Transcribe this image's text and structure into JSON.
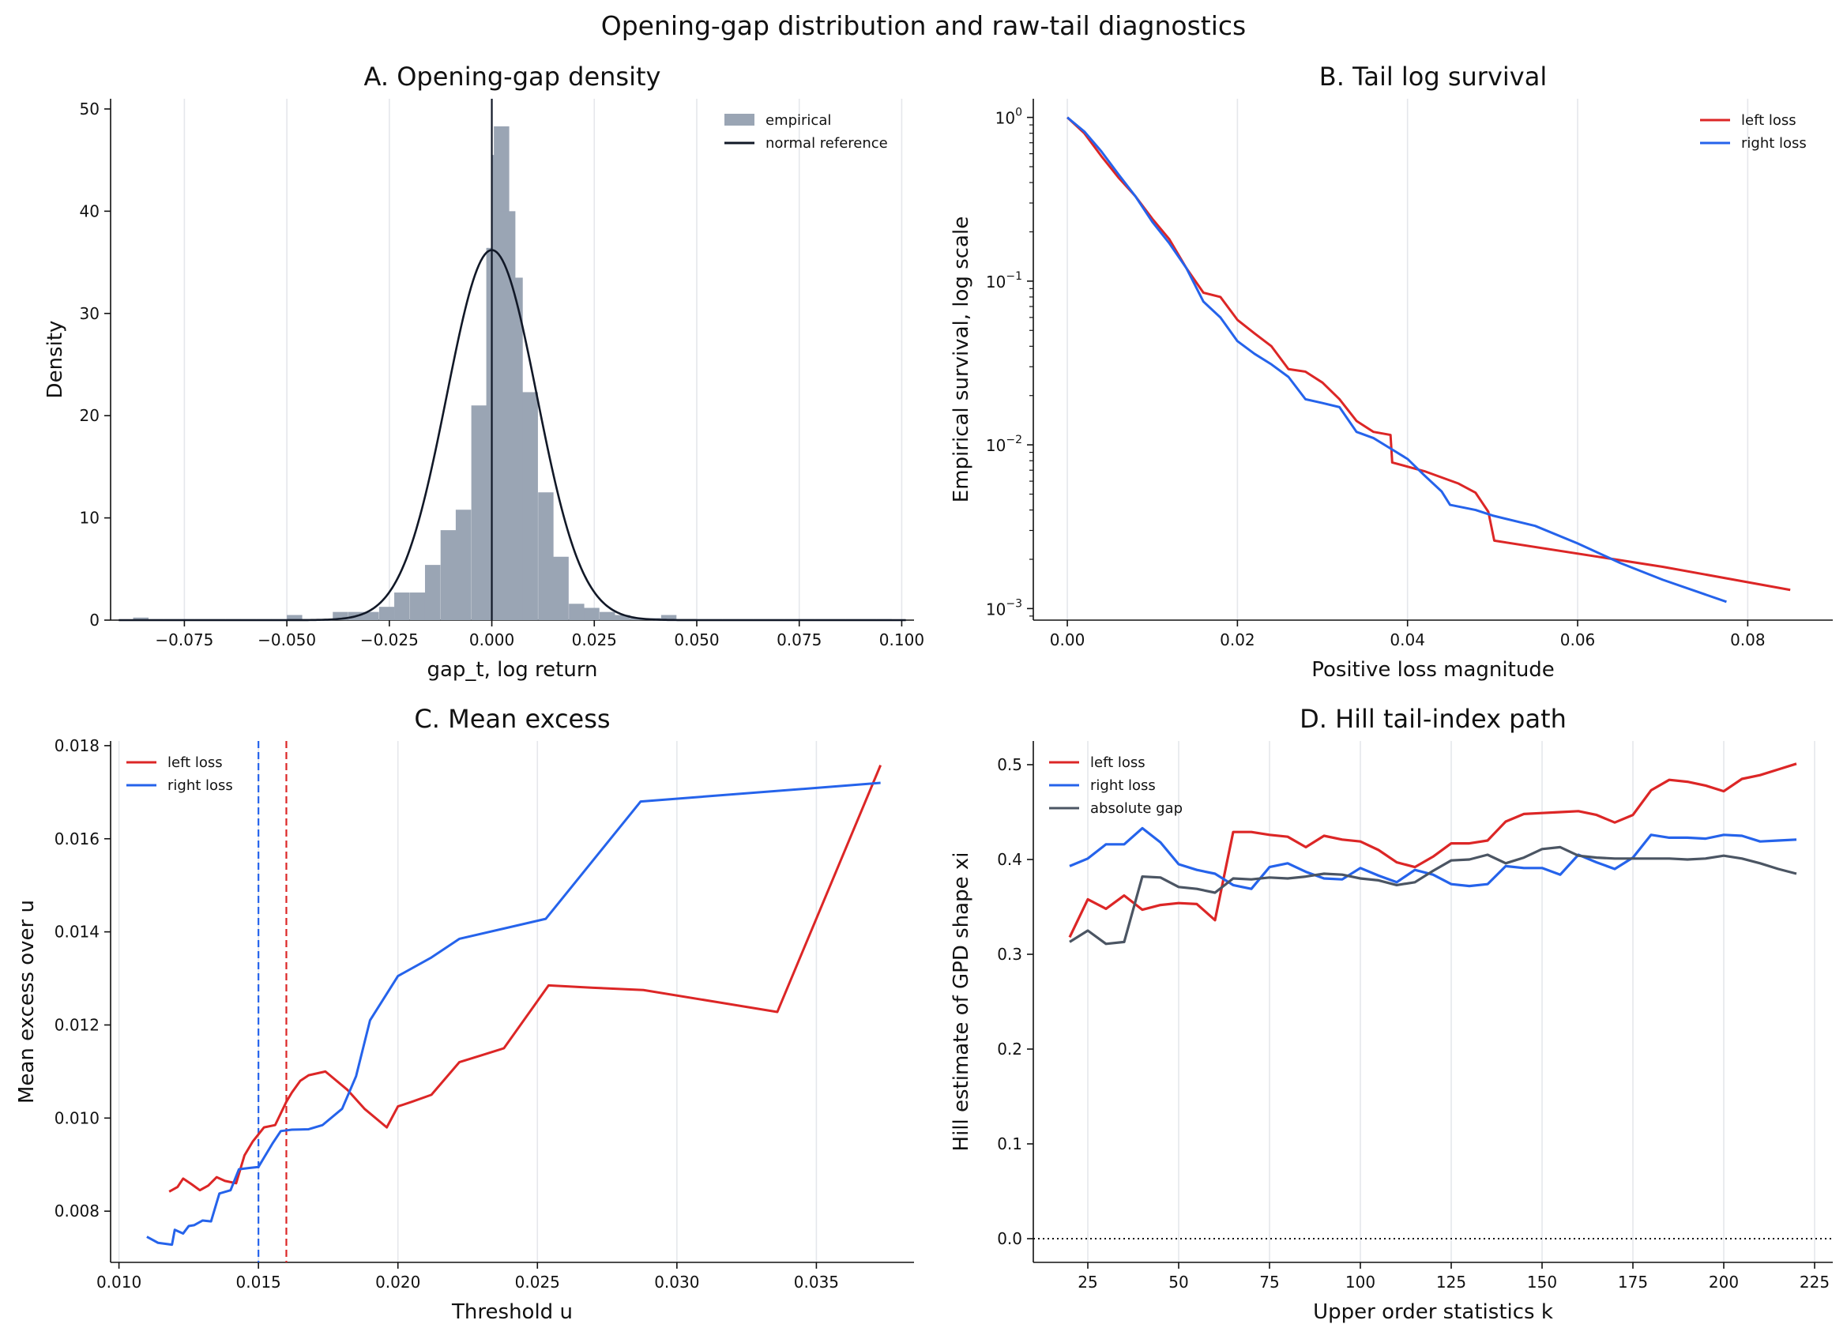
{
  "suptitle": "Opening-gap distribution and raw-tail diagnostics",
  "chart_data": [
    {
      "id": "A",
      "type": "bar",
      "title": "A. Opening-gap density",
      "xlabel": "gap_t, log return",
      "ylabel": "Density",
      "xlim": [
        -0.093,
        0.103
      ],
      "ylim": [
        0,
        51
      ],
      "xticks": [
        -0.075,
        -0.05,
        -0.025,
        0.0,
        0.025,
        0.05,
        0.075,
        0.1
      ],
      "xtick_labels": [
        "−0.075",
        "−0.050",
        "−0.025",
        "0.000",
        "0.025",
        "0.050",
        "0.075",
        "0.100"
      ],
      "yticks": [
        0,
        10,
        20,
        30,
        40,
        50
      ],
      "ytick_labels": [
        "0",
        "10",
        "20",
        "30",
        "40",
        "50"
      ],
      "grid": "vertical",
      "legend_position": "top-right",
      "bin_width": 0.00375,
      "bins": [
        {
          "x0": -0.0875,
          "y": 0.25
        },
        {
          "x0": -0.0838,
          "y": 0.1
        },
        {
          "x0": -0.08,
          "y": 0.1
        },
        {
          "x0": -0.0763,
          "y": 0.1
        },
        {
          "x0": -0.0725,
          "y": 0.1
        },
        {
          "x0": -0.0688,
          "y": 0.1
        },
        {
          "x0": -0.065,
          "y": 0.1
        },
        {
          "x0": -0.0613,
          "y": 0.1
        },
        {
          "x0": -0.0575,
          "y": 0.1
        },
        {
          "x0": -0.0538,
          "y": 0.1
        },
        {
          "x0": -0.05,
          "y": 0.5
        },
        {
          "x0": -0.0463,
          "y": 0.1
        },
        {
          "x0": -0.0425,
          "y": 0.1
        },
        {
          "x0": -0.0388,
          "y": 0.8
        },
        {
          "x0": -0.035,
          "y": 0.8
        },
        {
          "x0": -0.0313,
          "y": 0.8
        },
        {
          "x0": -0.0275,
          "y": 1.3
        },
        {
          "x0": -0.0238,
          "y": 2.7
        },
        {
          "x0": -0.02,
          "y": 2.7
        },
        {
          "x0": -0.0163,
          "y": 5.4
        },
        {
          "x0": -0.0125,
          "y": 8.8
        },
        {
          "x0": -0.0088,
          "y": 10.8
        },
        {
          "x0": -0.005,
          "y": 21.0
        },
        {
          "x0": -0.0013,
          "y": 36.4
        },
        {
          "x0": -0.0013,
          "y": 36.4
        },
        {
          "x0": -0.0013,
          "y": 36.4
        }
      ],
      "bins_positive": [
        {
          "x0": -0.0013,
          "y": 36.4
        },
        {
          "x0": -0.0001,
          "y": 45.5
        },
        {
          "x0": 0.0005,
          "y": 48.3
        },
        {
          "x0": 0.002,
          "y": 40.0
        },
        {
          "x0": 0.0038,
          "y": 33.5
        },
        {
          "x0": 0.0075,
          "y": 22.3
        },
        {
          "x0": 0.0113,
          "y": 12.5
        },
        {
          "x0": 0.015,
          "y": 6.2
        },
        {
          "x0": 0.0188,
          "y": 1.6
        },
        {
          "x0": 0.0225,
          "y": 1.2
        },
        {
          "x0": 0.0263,
          "y": 0.8
        },
        {
          "x0": 0.03,
          "y": 0.5
        },
        {
          "x0": 0.0338,
          "y": 0.2
        },
        {
          "x0": 0.0375,
          "y": 0.2
        },
        {
          "x0": 0.0413,
          "y": 0.5
        },
        {
          "x0": 0.045,
          "y": 0.1
        },
        {
          "x0": 0.0488,
          "y": 0.1
        },
        {
          "x0": 0.0525,
          "y": 0.1
        },
        {
          "x0": 0.0563,
          "y": 0.1
        },
        {
          "x0": 0.06,
          "y": 0.1
        },
        {
          "x0": 0.0638,
          "y": 0.1
        },
        {
          "x0": 0.0675,
          "y": 0.1
        },
        {
          "x0": 0.0713,
          "y": 0.1
        },
        {
          "x0": 0.075,
          "y": 0.1
        },
        {
          "x0": 0.0788,
          "y": 0.1
        },
        {
          "x0": 0.0825,
          "y": 0.1
        },
        {
          "x0": 0.0863,
          "y": 0.1
        },
        {
          "x0": 0.09,
          "y": 0.1
        },
        {
          "x0": 0.0938,
          "y": 0.1
        }
      ],
      "normal_reference": {
        "mean": 0.0,
        "sd": 0.011,
        "peak": 36.2
      },
      "vline_x": 0.0,
      "legend": [
        "empirical",
        "normal reference"
      ],
      "colors": {
        "bars": "#9aa5b4",
        "normal": "#111827",
        "vline": "#111827"
      }
    },
    {
      "id": "B",
      "type": "line",
      "title": "B. Tail log survival",
      "xlabel": "Positive loss magnitude",
      "ylabel": "Empirical survival, log scale",
      "yscale": "log",
      "xlim": [
        -0.004,
        0.09
      ],
      "ylim": [
        0.00085,
        1.3
      ],
      "xticks": [
        0.0,
        0.02,
        0.04,
        0.06,
        0.08
      ],
      "xtick_labels": [
        "0.00",
        "0.02",
        "0.04",
        "0.06",
        "0.08"
      ],
      "yticks": [
        0.001,
        0.01,
        0.1,
        1
      ],
      "ytick_labels": [
        {
          "base": "10",
          "exp": "−3"
        },
        {
          "base": "10",
          "exp": "−2"
        },
        {
          "base": "10",
          "exp": "−1"
        },
        {
          "base": "10",
          "exp": "0"
        }
      ],
      "grid": "vertical",
      "legend_position": "top-right",
      "series": [
        {
          "name": "left loss",
          "color": "#dc2626",
          "x": [
            0.0,
            0.002,
            0.004,
            0.006,
            0.008,
            0.01,
            0.012,
            0.014,
            0.016,
            0.018,
            0.02,
            0.022,
            0.024,
            0.026,
            0.028,
            0.03,
            0.032,
            0.034,
            0.036,
            0.038,
            0.0382,
            0.042,
            0.046,
            0.048,
            0.0495,
            0.0502,
            0.07,
            0.085
          ],
          "y": [
            1.0,
            0.8,
            0.58,
            0.43,
            0.33,
            0.24,
            0.18,
            0.12,
            0.085,
            0.08,
            0.058,
            0.048,
            0.04,
            0.029,
            0.028,
            0.024,
            0.019,
            0.014,
            0.012,
            0.0115,
            0.0078,
            0.0069,
            0.0058,
            0.0051,
            0.0039,
            0.0026,
            0.0018,
            0.0013
          ]
        },
        {
          "name": "right loss",
          "color": "#2563eb",
          "x": [
            0.0,
            0.002,
            0.004,
            0.006,
            0.008,
            0.01,
            0.012,
            0.014,
            0.016,
            0.018,
            0.02,
            0.022,
            0.024,
            0.026,
            0.028,
            0.03,
            0.032,
            0.034,
            0.036,
            0.038,
            0.04,
            0.042,
            0.044,
            0.045,
            0.048,
            0.05,
            0.055,
            0.06,
            0.065,
            0.07,
            0.0775
          ],
          "y": [
            1.0,
            0.82,
            0.62,
            0.45,
            0.33,
            0.23,
            0.17,
            0.12,
            0.075,
            0.06,
            0.043,
            0.036,
            0.031,
            0.026,
            0.019,
            0.018,
            0.017,
            0.012,
            0.011,
            0.0095,
            0.0082,
            0.0065,
            0.0052,
            0.0043,
            0.004,
            0.0037,
            0.0032,
            0.0025,
            0.0019,
            0.0015,
            0.0011
          ]
        }
      ],
      "legend": [
        "left loss",
        "right loss"
      ]
    },
    {
      "id": "C",
      "type": "line",
      "title": "C. Mean excess",
      "xlabel": "Threshold u",
      "ylabel": "Mean excess over u",
      "xlim": [
        0.0097,
        0.0385
      ],
      "ylim": [
        0.0069,
        0.0181
      ],
      "xticks": [
        0.01,
        0.015,
        0.02,
        0.025,
        0.03,
        0.035
      ],
      "xtick_labels": [
        "0.010",
        "0.015",
        "0.020",
        "0.025",
        "0.030",
        "0.035"
      ],
      "yticks": [
        0.008,
        0.01,
        0.012,
        0.014,
        0.016,
        0.018
      ],
      "ytick_labels": [
        "0.008",
        "0.010",
        "0.012",
        "0.014",
        "0.016",
        "0.018"
      ],
      "grid": "vertical",
      "legend_position": "top-left",
      "series": [
        {
          "name": "left loss",
          "color": "#dc2626",
          "x": [
            0.0118,
            0.0121,
            0.0123,
            0.0126,
            0.0129,
            0.0132,
            0.0135,
            0.0138,
            0.0142,
            0.0145,
            0.0148,
            0.0152,
            0.0156,
            0.016,
            0.0162,
            0.0165,
            0.0168,
            0.0174,
            0.0182,
            0.0188,
            0.0196,
            0.02,
            0.0205,
            0.0212,
            0.0222,
            0.023,
            0.0238,
            0.0254,
            0.026,
            0.027,
            0.0288,
            0.0336,
            0.0373
          ],
          "y": [
            0.00842,
            0.00852,
            0.0087,
            0.00858,
            0.00845,
            0.00855,
            0.00873,
            0.00865,
            0.0086,
            0.0092,
            0.0095,
            0.0098,
            0.00985,
            0.01035,
            0.01055,
            0.0108,
            0.01092,
            0.011,
            0.0106,
            0.0102,
            0.0098,
            0.01025,
            0.01035,
            0.0105,
            0.0112,
            0.01135,
            0.0115,
            0.01285,
            0.01283,
            0.0128,
            0.01275,
            0.01228,
            0.01758
          ]
        },
        {
          "name": "right loss",
          "color": "#2563eb",
          "x": [
            0.011,
            0.0114,
            0.0119,
            0.012,
            0.0123,
            0.0125,
            0.0127,
            0.013,
            0.0133,
            0.0136,
            0.014,
            0.0143,
            0.0147,
            0.015,
            0.0152,
            0.0155,
            0.0158,
            0.0162,
            0.0168,
            0.0173,
            0.018,
            0.0185,
            0.019,
            0.02,
            0.0212,
            0.0222,
            0.0253,
            0.0287,
            0.0373
          ],
          "y": [
            0.00745,
            0.00732,
            0.00728,
            0.0076,
            0.00752,
            0.00768,
            0.0077,
            0.0078,
            0.00778,
            0.00838,
            0.00845,
            0.0089,
            0.00893,
            0.00895,
            0.00915,
            0.00945,
            0.00972,
            0.00975,
            0.00976,
            0.00985,
            0.0102,
            0.0109,
            0.0121,
            0.01305,
            0.01345,
            0.01385,
            0.01428,
            0.0168,
            0.0172
          ]
        }
      ],
      "vlines": [
        {
          "x": 0.015,
          "color": "#2563eb",
          "style": "dashed"
        },
        {
          "x": 0.016,
          "color": "#dc2626",
          "style": "dashed"
        }
      ],
      "legend": [
        "left loss",
        "right loss"
      ]
    },
    {
      "id": "D",
      "type": "line",
      "title": "D. Hill tail-index path",
      "xlabel": "Upper order statistics k",
      "ylabel": "Hill estimate of GPD shape xi",
      "xlim": [
        10,
        230
      ],
      "ylim": [
        -0.025,
        0.525
      ],
      "xticks": [
        25,
        50,
        75,
        100,
        125,
        150,
        175,
        200,
        225
      ],
      "xtick_labels": [
        "25",
        "50",
        "75",
        "100",
        "125",
        "150",
        "175",
        "200",
        "225"
      ],
      "yticks": [
        0.0,
        0.1,
        0.2,
        0.3,
        0.4,
        0.5
      ],
      "ytick_labels": [
        "0.0",
        "0.1",
        "0.2",
        "0.3",
        "0.4",
        "0.5"
      ],
      "grid": "vertical",
      "legend_position": "top-left",
      "hline": {
        "y": 0.0,
        "style": "dotted",
        "color": "#111111"
      },
      "x": [
        20,
        25,
        30,
        35,
        40,
        45,
        50,
        55,
        60,
        65,
        70,
        75,
        80,
        85,
        90,
        95,
        100,
        105,
        110,
        115,
        120,
        125,
        130,
        135,
        140,
        145,
        150,
        155,
        160,
        165,
        170,
        175,
        180,
        185,
        190,
        195,
        200,
        205,
        210,
        215,
        220
      ],
      "series": [
        {
          "name": "left loss",
          "color": "#dc2626",
          "values": [
            0.318,
            0.358,
            0.348,
            0.362,
            0.347,
            0.352,
            0.354,
            0.353,
            0.336,
            0.429,
            0.429,
            0.426,
            0.424,
            0.413,
            0.425,
            0.421,
            0.419,
            0.41,
            0.397,
            0.392,
            0.403,
            0.417,
            0.417,
            0.42,
            0.44,
            0.448,
            0.449,
            0.45,
            0.451,
            0.447,
            0.439,
            0.447,
            0.473,
            0.484,
            0.482,
            0.478,
            0.472,
            0.485,
            0.489,
            0.495,
            0.501
          ]
        },
        {
          "name": "right loss",
          "color": "#2563eb",
          "values": [
            0.393,
            0.401,
            0.416,
            0.416,
            0.433,
            0.418,
            0.395,
            0.389,
            0.385,
            0.373,
            0.369,
            0.392,
            0.396,
            0.387,
            0.38,
            0.379,
            0.391,
            0.383,
            0.376,
            0.389,
            0.384,
            0.374,
            0.372,
            0.374,
            0.393,
            0.391,
            0.391,
            0.384,
            0.405,
            0.397,
            0.39,
            0.402,
            0.426,
            0.423,
            0.423,
            0.422,
            0.426,
            0.425,
            0.419,
            0.42,
            0.421
          ]
        },
        {
          "name": "absolute gap",
          "color": "#4b5563",
          "values": [
            0.313,
            0.325,
            0.311,
            0.313,
            0.382,
            0.381,
            0.371,
            0.369,
            0.365,
            0.38,
            0.379,
            0.381,
            0.38,
            0.382,
            0.385,
            0.384,
            0.38,
            0.378,
            0.373,
            0.376,
            0.388,
            0.399,
            0.4,
            0.405,
            0.396,
            0.402,
            0.411,
            0.413,
            0.404,
            0.402,
            0.401,
            0.401,
            0.401,
            0.401,
            0.4,
            0.401,
            0.404,
            0.401,
            0.396,
            0.39,
            0.385
          ]
        }
      ],
      "legend": [
        "left loss",
        "right loss",
        "absolute gap"
      ]
    }
  ]
}
